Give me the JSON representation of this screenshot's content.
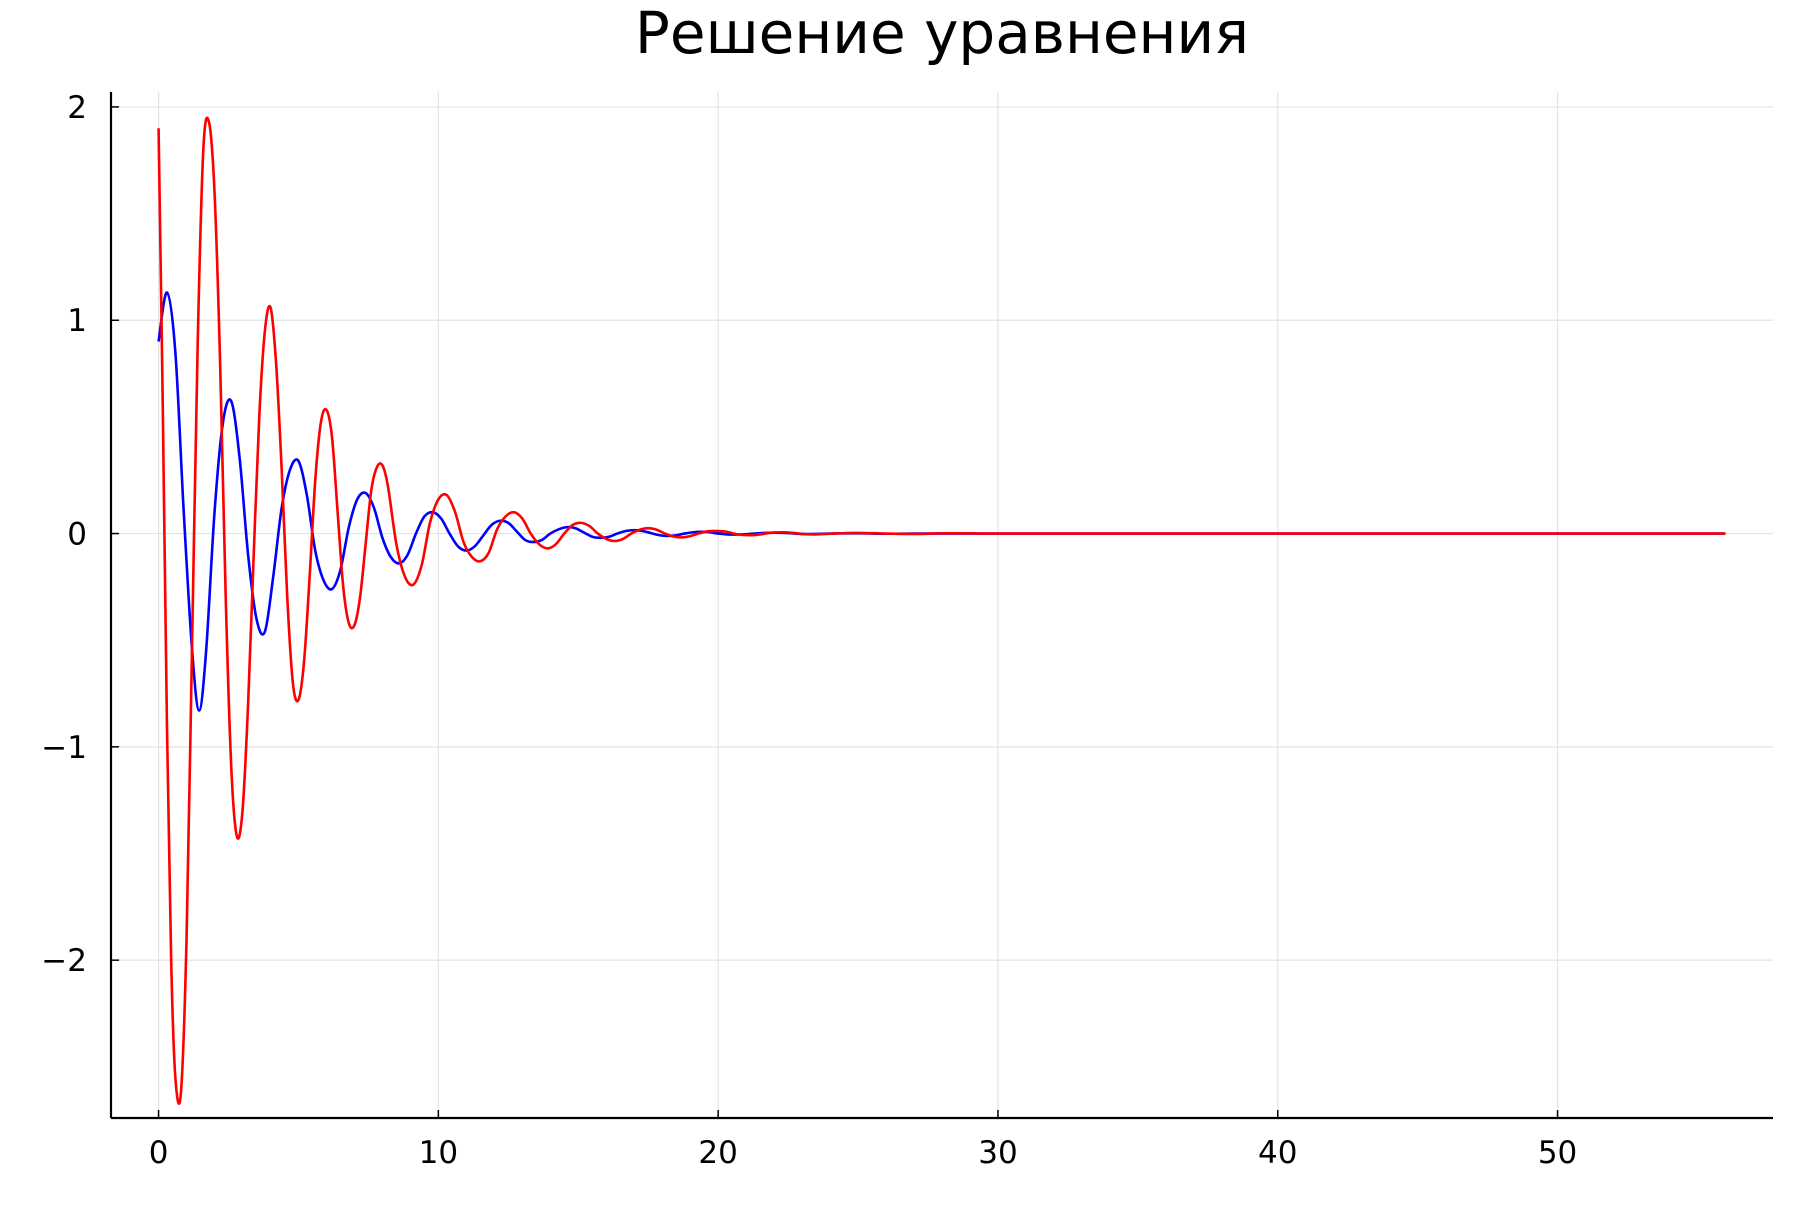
{
  "chart_data": {
    "type": "line",
    "title": "Решение уравнения",
    "xlabel": "",
    "ylabel": "",
    "xlim": [
      -1.7,
      57.7
    ],
    "ylim": [
      -2.74,
      2.07
    ],
    "x_ticks": [
      0,
      10,
      20,
      30,
      40,
      50
    ],
    "x_tick_labels": [
      "0",
      "10",
      "20",
      "30",
      "40",
      "50"
    ],
    "y_ticks": [
      2,
      1,
      0,
      -1,
      -2
    ],
    "y_tick_labels": [
      "2",
      "1",
      "0",
      "−1",
      "−2"
    ],
    "grid": true,
    "legend": "none",
    "series": [
      {
        "color": "#0000ff",
        "x": [
          0,
          0.3,
          0.6,
          0.9,
          1.2,
          1.45,
          1.7,
          2.0,
          2.3,
          2.6,
          2.9,
          3.2,
          3.5,
          3.8,
          4.1,
          4.4,
          4.7,
          5.0,
          5.3,
          5.6,
          5.9,
          6.2,
          6.5,
          6.8,
          7.1,
          7.4,
          7.7,
          8.0,
          8.3,
          8.6,
          8.9,
          9.2,
          9.5,
          9.8,
          10.1,
          10.4,
          10.7,
          11.0,
          11.3,
          11.6,
          11.9,
          12.2,
          12.5,
          12.8,
          13.1,
          13.4,
          13.7,
          14.0,
          14.3,
          14.6,
          14.9,
          15.2,
          15.5,
          15.8,
          16.1,
          16.4,
          16.7,
          17.0,
          17.3,
          17.6,
          17.9,
          18.2,
          18.5,
          18.8,
          19.1,
          19.4,
          19.7,
          20.0,
          20.5,
          21.0,
          21.5,
          22.0,
          22.5,
          23.0,
          23.5,
          24.0,
          25.0,
          26.0,
          27.0,
          28.0,
          30.0,
          35.0,
          40.0,
          45.0,
          50.0,
          56.0
        ],
        "y": [
          0.9,
          1.13,
          0.85,
          0.1,
          -0.55,
          -0.83,
          -0.55,
          0.1,
          0.52,
          0.62,
          0.35,
          -0.1,
          -0.4,
          -0.46,
          -0.2,
          0.12,
          0.3,
          0.34,
          0.18,
          -0.08,
          -0.22,
          -0.26,
          -0.17,
          0.03,
          0.16,
          0.19,
          0.12,
          -0.02,
          -0.11,
          -0.14,
          -0.1,
          0.0,
          0.08,
          0.1,
          0.07,
          0.0,
          -0.06,
          -0.08,
          -0.06,
          -0.01,
          0.04,
          0.06,
          0.05,
          0.01,
          -0.03,
          -0.04,
          -0.03,
          0.0,
          0.02,
          0.03,
          0.025,
          0.005,
          -0.015,
          -0.02,
          -0.015,
          0.0,
          0.012,
          0.016,
          0.012,
          0.002,
          -0.008,
          -0.011,
          -0.008,
          0.0,
          0.006,
          0.008,
          0.006,
          0.0,
          -0.005,
          -0.003,
          0.002,
          0.004,
          0.002,
          -0.002,
          -0.002,
          0.0,
          0.001,
          -0.001,
          0.0,
          0.0,
          0.0,
          0.0,
          0.0,
          0.0,
          0.0,
          0.0
        ]
      },
      {
        "color": "#ff0000",
        "x": [
          0,
          0.15,
          0.3,
          0.45,
          0.6,
          0.8,
          1.0,
          1.2,
          1.4,
          1.6,
          1.8,
          2.0,
          2.2,
          2.4,
          2.6,
          2.8,
          3.0,
          3.2,
          3.4,
          3.6,
          3.8,
          4.0,
          4.2,
          4.4,
          4.6,
          4.8,
          5.0,
          5.2,
          5.4,
          5.6,
          5.8,
          6.0,
          6.2,
          6.4,
          6.6,
          6.8,
          7.0,
          7.2,
          7.4,
          7.6,
          7.8,
          8.0,
          8.2,
          8.5,
          8.8,
          9.1,
          9.4,
          9.7,
          10.0,
          10.3,
          10.6,
          10.9,
          11.2,
          11.5,
          11.8,
          12.1,
          12.4,
          12.7,
          13.0,
          13.3,
          13.6,
          13.9,
          14.2,
          14.5,
          14.8,
          15.1,
          15.4,
          15.7,
          16.0,
          16.3,
          16.6,
          16.9,
          17.2,
          17.5,
          17.8,
          18.1,
          18.4,
          18.7,
          19.0,
          19.3,
          19.6,
          19.9,
          20.3,
          20.7,
          21.1,
          21.5,
          21.9,
          22.3,
          22.7,
          23.1,
          23.5,
          24.0,
          24.5,
          25.0,
          26.0,
          27.0,
          28.0,
          29.0,
          30.0,
          35.0,
          40.0,
          45.0,
          50.0,
          56.0
        ],
        "y": [
          1.9,
          0.6,
          -0.9,
          -2.0,
          -2.55,
          -2.62,
          -1.9,
          -0.5,
          0.9,
          1.8,
          1.93,
          1.6,
          0.8,
          -0.3,
          -1.1,
          -1.42,
          -1.3,
          -0.8,
          -0.1,
          0.55,
          0.95,
          1.06,
          0.8,
          0.3,
          -0.3,
          -0.7,
          -0.78,
          -0.6,
          -0.2,
          0.25,
          0.52,
          0.58,
          0.45,
          0.1,
          -0.25,
          -0.42,
          -0.43,
          -0.3,
          -0.05,
          0.2,
          0.31,
          0.32,
          0.22,
          -0.05,
          -0.2,
          -0.24,
          -0.15,
          0.05,
          0.16,
          0.18,
          0.1,
          -0.04,
          -0.11,
          -0.13,
          -0.09,
          0.02,
          0.08,
          0.1,
          0.07,
          0.0,
          -0.05,
          -0.07,
          -0.05,
          0.0,
          0.04,
          0.05,
          0.035,
          0.0,
          -0.025,
          -0.035,
          -0.025,
          0.0,
          0.018,
          0.025,
          0.018,
          0.0,
          -0.014,
          -0.018,
          -0.012,
          0.0,
          0.01,
          0.012,
          0.008,
          -0.004,
          -0.008,
          -0.004,
          0.004,
          0.006,
          0.003,
          -0.003,
          -0.004,
          -0.001,
          0.002,
          0.003,
          0.0,
          -0.002,
          0.001,
          0.001,
          0.0,
          0.0,
          0.0,
          0.0,
          0.0,
          0.0
        ]
      }
    ]
  }
}
